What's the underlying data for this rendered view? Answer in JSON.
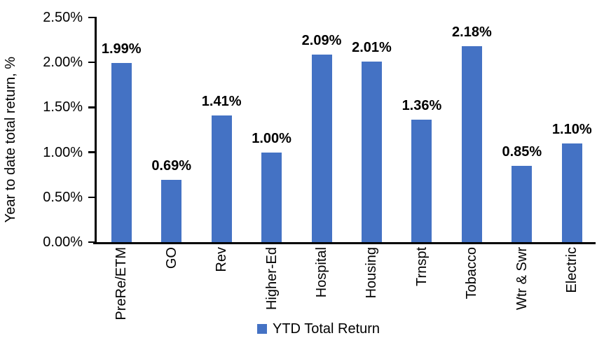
{
  "chart_data": {
    "type": "bar",
    "title": "",
    "xlabel": "",
    "ylabel": "Year to date total return, %",
    "categories": [
      "PreRe/ETM",
      "GO",
      "Rev",
      "Higher-Ed",
      "Hospital",
      "Housing",
      "Trnspt",
      "Tobacco",
      "Wtr & Swr",
      "Electric"
    ],
    "series": [
      {
        "name": "YTD Total Return",
        "values": [
          1.99,
          0.69,
          1.41,
          1.0,
          2.09,
          2.01,
          1.36,
          2.18,
          0.85,
          1.1
        ],
        "data_labels": [
          "1.99%",
          "0.69%",
          "1.41%",
          "1.00%",
          "2.09%",
          "2.01%",
          "1.36%",
          "2.18%",
          "0.85%",
          "1.10%"
        ],
        "color": "#4472C4"
      }
    ],
    "ylim": [
      0,
      2.5
    ],
    "yticks": [
      {
        "value": 0.0,
        "label": "0.00%"
      },
      {
        "value": 0.5,
        "label": "0.50%"
      },
      {
        "value": 1.0,
        "label": "1.00%"
      },
      {
        "value": 1.5,
        "label": "1.50%"
      },
      {
        "value": 2.0,
        "label": "2.00%"
      },
      {
        "value": 2.5,
        "label": "2.50%"
      }
    ],
    "grid": false,
    "legend_label": "YTD Total Return",
    "legend_position": "bottom",
    "axis_color": "#000000",
    "text_color": "#000000",
    "background_color": "#ffffff"
  }
}
